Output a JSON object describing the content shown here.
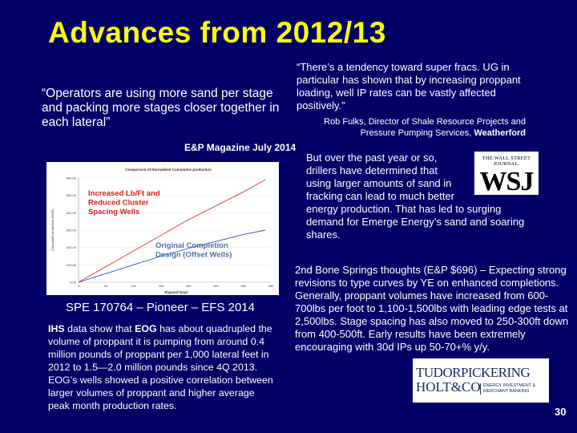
{
  "slide": {
    "title": "Advances from 2012/13",
    "page_number": "30"
  },
  "quote_left": {
    "text": "“Operators are using more sand per stage and packing more stages closer together in each lateral”",
    "source": "E&P Magazine July 2014"
  },
  "quote_right": {
    "text": "“There’s a tendency toward super fracs. UG in particular has shown that by increasing proppant loading, well IP rates can be vastly affected positively.”",
    "attribution_prefix": "Rob Fulks, Director of Shale Resource Projects and Pressure Pumping Services, ",
    "attribution_company": "Weatherford"
  },
  "chart": {
    "title": "Comparison of Normalized Cumulative production",
    "ylabel": "Cumulative production (BOE)",
    "xlabel": "Elapsed Days",
    "yticks": [
      "600.00",
      "500.00",
      "400.00",
      "300.00",
      "200.00",
      "100.00",
      "0.00"
    ],
    "xticks": [
      "0",
      "50",
      "100",
      "150",
      "200",
      "250",
      "300",
      "350"
    ],
    "label_red": [
      "Increased Lb/Ft and",
      "Reduced Cluster",
      "Spacing Wells"
    ],
    "label_blue": [
      "Original Completion",
      "Design (Offset Wells)"
    ],
    "color_red": "#e03030",
    "color_blue": "#3050c0",
    "label_red_color": "#d02020",
    "label_blue_color": "#5070b0"
  },
  "chart_data": {
    "type": "line",
    "title": "Comparison of Normalized Cumulative production",
    "xlabel": "Elapsed Days",
    "ylabel": "Cumulative production (BOE)",
    "xlim": [
      0,
      350
    ],
    "ylim": [
      0,
      600
    ],
    "series": [
      {
        "name": "Increased Lb/Ft and Reduced Cluster Spacing Wells",
        "x": [
          0,
          50,
          100,
          150,
          200,
          250,
          300,
          340
        ],
        "y": [
          0,
          90,
          180,
          270,
          360,
          440,
          520,
          590
        ]
      },
      {
        "name": "Original Completion Design (Offset Wells)",
        "x": [
          0,
          50,
          100,
          150,
          200,
          250,
          300,
          340
        ],
        "y": [
          0,
          50,
          100,
          150,
          195,
          235,
          275,
          300
        ]
      }
    ]
  },
  "spe_caption": "SPE 170764 – Pioneer – EFS 2014",
  "ihs_paragraph": {
    "ihs": "IHS",
    "part1": " data show that ",
    "eog": "EOG",
    "part2": " has about quadrupled the volume of proppant it is pumping from around 0.4 million pounds of proppant per 1,000 lateral feet in 2012 to 1.5—2.0 million pounds since 4Q 2013. EOG’s wells showed a positive correlation between larger volumes of proppant and higher average peak month production rates."
  },
  "wsj_paragraph": "But over the past year or so, drillers have determined that using larger amounts of sand in fracking can lead to much better energy production. That has led to surging demand for Emerge Energy’s sand and soaring shares.",
  "wsj_logo": {
    "masthead": "THE WALL STREET JOURNAL.",
    "letters": "WSJ"
  },
  "bone_paragraph": "2nd Bone Springs thoughts (E&P $696) – Expecting strong revisions to type curves by YE on enhanced completions. Generally, proppant volumes have increased from 600-700lbs per foot to 1,100-1,500lbs with leading edge tests at 2,500lbs.  Stage spacing has also moved to 250-300ft down from 400-500ft.  Early results have been extremely encouraging with 30d IPs up 50-70+% y/y.",
  "tph_logo": {
    "line1": "TUDORPICKERING",
    "line2": "HOLT&CO",
    "tag1": "ENERGY INVESTMENT &",
    "tag2": "MERCHANT BANKING",
    "color": "#1a2a6a"
  },
  "colors": {
    "background": "#000066",
    "title": "#ffff00",
    "text": "#ffffff"
  }
}
